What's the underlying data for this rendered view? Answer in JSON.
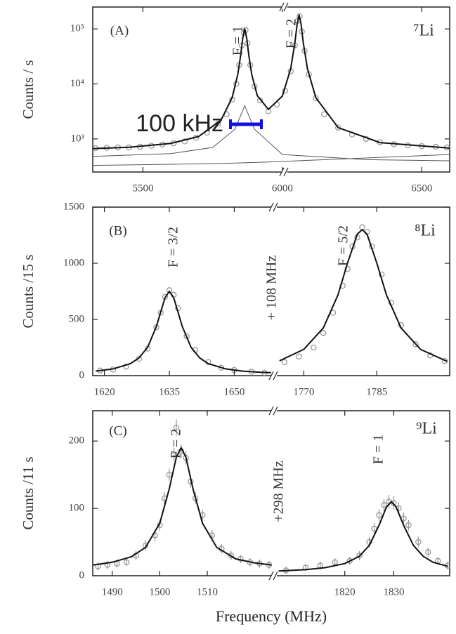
{
  "chart_data": [
    {
      "type": "line",
      "panel_label": "(A)",
      "isotope": "⁷Li",
      "ylabel": "Counts / s",
      "ylog": true,
      "ylim": [
        250,
        250000
      ],
      "yticks": [
        {
          "value": 1000,
          "label": "10³"
        },
        {
          "value": 10000,
          "label": "10⁴"
        },
        {
          "value": 100000,
          "label": "10⁵"
        }
      ],
      "xlim": [
        5320,
        6600
      ],
      "xticks": [
        5500,
        6000,
        6500
      ],
      "peak_labels": [
        "F = 1",
        "F = 2"
      ],
      "scale_bar_label": "100 kHz",
      "series": [
        {
          "color": "#999",
          "style": "markers",
          "x": [
            5330,
            5370,
            5410,
            5450,
            5490,
            5530,
            5570,
            5610,
            5650,
            5690,
            5730,
            5770,
            5800,
            5820,
            5835,
            5845,
            5855,
            5862,
            5868,
            5875,
            5885,
            5900,
            5920,
            5950,
            5980,
            6010,
            6030,
            6045,
            6055,
            6062,
            6070,
            6080,
            6095,
            6120,
            6150,
            6200,
            6250,
            6300,
            6350,
            6400,
            6450,
            6500,
            6550,
            6590
          ],
          "values": [
            680,
            690,
            700,
            700,
            720,
            750,
            790,
            830,
            900,
            1050,
            1300,
            1900,
            2800,
            5200,
            10000,
            22000,
            50000,
            85000,
            95000,
            55000,
            22000,
            9000,
            5000,
            3200,
            4200,
            7500,
            17000,
            50000,
            140000,
            170000,
            90000,
            40000,
            15000,
            5500,
            2800,
            1600,
            1200,
            1000,
            870,
            800,
            760,
            740,
            720,
            700
          ]
        },
        {
          "color": "#111",
          "style": "line",
          "x": [
            5320,
            5450,
            5600,
            5700,
            5780,
            5820,
            5840,
            5850,
            5858,
            5865,
            5872,
            5880,
            5890,
            5910,
            5950,
            6000,
            6030,
            6045,
            6053,
            6060,
            6067,
            6075,
            6090,
            6120,
            6200,
            6350,
            6600
          ],
          "values": [
            667,
            706,
            827,
            1105,
            2193,
            5618,
            14765,
            31777,
            68154,
            101072,
            68222,
            31923,
            15014,
            6102,
            3439,
            6011,
            18966,
            56293,
            121687,
            180862,
            121650,
            56211,
            18797,
            5618,
            1603,
            856,
            681
          ]
        },
        {
          "color": "#555",
          "style": "thin",
          "x": [
            5320,
            5600,
            5800,
            5950,
            6100,
            6300,
            6600
          ],
          "values": [
            330,
            345,
            360,
            380,
            410,
            450,
            520
          ]
        },
        {
          "color": "#555",
          "style": "thin",
          "x": [
            5320,
            5600,
            5750,
            5830,
            5865,
            5900,
            6000,
            6300,
            6600
          ],
          "values": [
            480,
            540,
            700,
            1500,
            4000,
            1500,
            520,
            420,
            400
          ]
        }
      ]
    },
    {
      "type": "line",
      "panel_label": "(B)",
      "isotope": "⁸Li",
      "ylabel": "Counts /15 s",
      "ylim": [
        0,
        1500
      ],
      "yticks": [
        0,
        500,
        1000,
        1500
      ],
      "peak_labels": [
        "F = 3/2",
        "F = 5/2"
      ],
      "offset_label": "+ 108 MHz",
      "segments": [
        {
          "xlim": [
            1617.3,
            1658.7
          ],
          "xticks": [
            1620,
            1635,
            1650
          ],
          "series": [
            {
              "color": "#999",
              "style": "markers",
              "x": [
                1619,
                1622,
                1625,
                1628,
                1630,
                1632,
                1633,
                1634,
                1635,
                1636,
                1637,
                1639,
                1641,
                1644,
                1647,
                1650,
                1654,
                1657
              ],
              "values": [
                45,
                55,
                80,
                150,
                240,
                430,
                560,
                700,
                760,
                720,
                600,
                350,
                230,
                120,
                70,
                50,
                35,
                25
              ]
            },
            {
              "color": "#111",
              "style": "line",
              "x": [
                1618,
                1622,
                1626,
                1628,
                1630,
                1632,
                1634,
                1635,
                1636,
                1638,
                1640,
                1642,
                1644,
                1648,
                1652,
                1656,
                1658.5
              ],
              "values": [
                40,
                60,
                107,
                158,
                253,
                437,
                694,
                750,
                694,
                437,
                253,
                158,
                107,
                60,
                40,
                30,
                26
              ]
            }
          ]
        },
        {
          "xlim": [
            1764.3,
            1800
          ],
          "xticks": [
            1770,
            1785
          ],
          "series": [
            {
              "color": "#999",
              "style": "markers",
              "x": [
                1766,
                1769,
                1772,
                1774,
                1776,
                1778,
                1779,
                1780,
                1781,
                1782,
                1783,
                1784,
                1786,
                1788,
                1790,
                1793,
                1796,
                1799
              ],
              "values": [
                120,
                170,
                250,
                380,
                560,
                800,
                950,
                1150,
                1230,
                1320,
                1280,
                1150,
                900,
                650,
                450,
                280,
                180,
                130
              ]
            },
            {
              "color": "#111",
              "style": "line",
              "x": [
                1765,
                1770,
                1774,
                1777,
                1779,
                1781,
                1782,
                1783,
                1785,
                1787,
                1790,
                1794,
                1799.5
              ],
              "values": [
                132,
                234,
                424,
                716,
                1004,
                1259,
                1300,
                1259,
                1004,
                716,
                424,
                234,
                126
              ]
            }
          ]
        }
      ]
    },
    {
      "type": "line",
      "panel_label": "(C)",
      "isotope": "⁹Li",
      "ylabel": "Counts /11 s",
      "xlabel": "Frequency (MHz)",
      "ylim": [
        0,
        245
      ],
      "yticks": [
        0,
        100,
        200
      ],
      "peak_labels": [
        "F = 2",
        "F = 1"
      ],
      "offset_label": "+298 MHz",
      "segments": [
        {
          "xlim": [
            1485.9,
            1523.6
          ],
          "xticks": [
            1490,
            1500,
            1510
          ],
          "series": [
            {
              "color": "#999",
              "style": "markers",
              "x": [
                1487,
                1489,
                1491,
                1493,
                1495,
                1497,
                1499,
                1500,
                1501,
                1502,
                1503,
                1503.5,
                1504.5,
                1505.5,
                1506.5,
                1507.5,
                1509,
                1511,
                1513,
                1515,
                1517,
                1519,
                1521,
                1523
              ],
              "values": [
                14,
                16,
                18,
                20,
                30,
                45,
                60,
                75,
                115,
                150,
                180,
                220,
                185,
                175,
                140,
                115,
                90,
                60,
                40,
                30,
                25,
                20,
                18,
                16
              ],
              "errors": [
                6,
                6,
                6,
                6,
                7,
                8,
                8,
                8,
                9,
                9,
                10,
                12,
                10,
                10,
                9,
                9,
                8,
                8,
                7,
                7,
                6,
                6,
                6,
                6
              ]
            },
            {
              "color": "#111",
              "style": "line",
              "x": [
                1486,
                1490,
                1494,
                1497,
                1500,
                1502,
                1503.5,
                1504.5,
                1505.5,
                1507,
                1509,
                1512,
                1516,
                1520,
                1523.5
              ],
              "values": [
                16,
                20,
                28,
                42,
                78,
                129,
                176,
                190,
                176,
                129,
                78,
                42,
                25,
                19,
                16
              ]
            }
          ]
        },
        {
          "xlim": [
            1806,
            1841.4
          ],
          "xticks": [
            1820,
            1830
          ],
          "series": [
            {
              "color": "#999",
              "style": "markers",
              "x": [
                1808,
                1812,
                1815,
                1818,
                1821,
                1823,
                1825,
                1826,
                1827,
                1828,
                1829,
                1830,
                1831,
                1832,
                1833,
                1835,
                1837,
                1839,
                1841
              ],
              "values": [
                8,
                12,
                15,
                20,
                22,
                30,
                50,
                70,
                90,
                105,
                110,
                108,
                100,
                85,
                75,
                50,
                35,
                22,
                15
              ],
              "errors": [
                5,
                5,
                6,
                6,
                6,
                7,
                8,
                8,
                9,
                9,
                10,
                10,
                9,
                9,
                8,
                8,
                7,
                6,
                6
              ]
            },
            {
              "color": "#111",
              "style": "line",
              "x": [
                1806.5,
                1812,
                1816,
                1820,
                1823,
                1825,
                1827,
                1828.5,
                1829.5,
                1830.5,
                1832,
                1834,
                1836,
                1838,
                1841
              ],
              "values": [
                7,
                9,
                12,
                18,
                29,
                45,
                75,
                102,
                110,
                102,
                75,
                45,
                29,
                20,
                14
              ]
            }
          ]
        }
      ]
    }
  ]
}
